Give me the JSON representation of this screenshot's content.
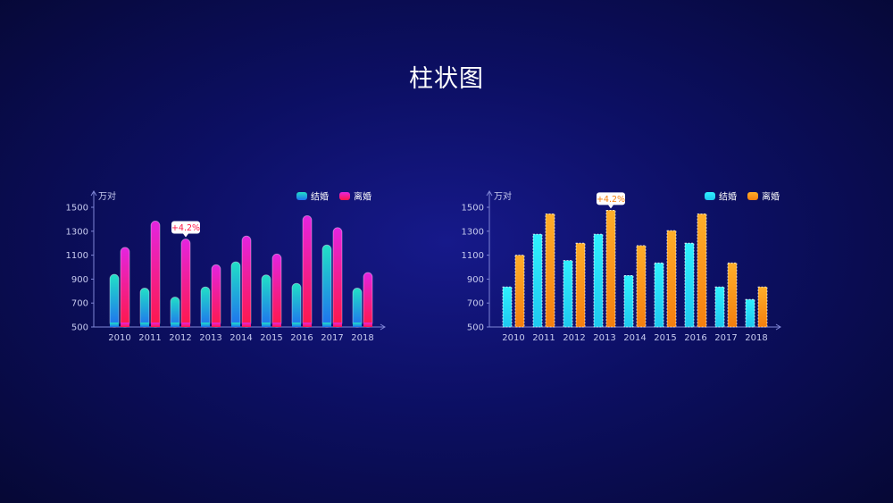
{
  "title": "柱状图",
  "chart_data": [
    {
      "type": "bar",
      "ylabel": "万对",
      "ylim": [
        500,
        1500
      ],
      "yticks": [
        500,
        700,
        900,
        1100,
        1300,
        1500
      ],
      "categories": [
        "2010",
        "2011",
        "2012",
        "2013",
        "2014",
        "2015",
        "2016",
        "2017",
        "2018"
      ],
      "series": [
        {
          "name": "结婚",
          "values": [
            940,
            825,
            750,
            835,
            1045,
            935,
            865,
            1185,
            825
          ]
        },
        {
          "name": "离婚",
          "values": [
            1165,
            1385,
            1235,
            1020,
            1260,
            1110,
            1430,
            1330,
            955
          ]
        }
      ],
      "legend": "top-right",
      "annotation": {
        "text": "+4.2%",
        "category": "2012",
        "series": "离婚"
      },
      "colors": {
        "series1": [
          "#1f6ff0",
          "#21e0c6"
        ],
        "series2": [
          "#ff1847",
          "#e424e0"
        ]
      }
    },
    {
      "type": "bar",
      "ylabel": "万对",
      "ylim": [
        500,
        1500
      ],
      "yticks": [
        500,
        700,
        900,
        1100,
        1300,
        1500
      ],
      "categories": [
        "2010",
        "2011",
        "2012",
        "2013",
        "2014",
        "2015",
        "2016",
        "2017",
        "2018"
      ],
      "series": [
        {
          "name": "结婚",
          "values": [
            835,
            1275,
            1055,
            1275,
            930,
            1035,
            1200,
            835,
            730
          ]
        },
        {
          "name": "离婚",
          "values": [
            1100,
            1445,
            1200,
            1475,
            1180,
            1305,
            1445,
            1035,
            835
          ]
        }
      ],
      "legend": "top-right",
      "annotation": {
        "text": "+4.2%",
        "category": "2013",
        "series": "离婚"
      },
      "colors": {
        "series1": [
          "#1ec8f0",
          "#2ff0ff"
        ],
        "series2": [
          "#f57f0e",
          "#ffae2a"
        ]
      }
    }
  ]
}
